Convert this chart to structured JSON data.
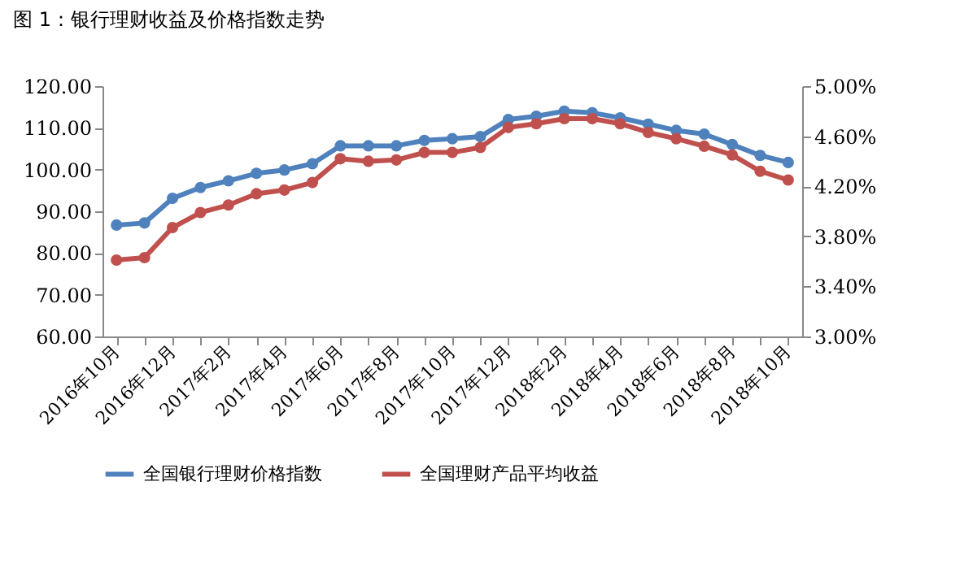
{
  "chart_data": {
    "type": "line",
    "title": "图 1：银行理财收益及价格指数走势",
    "categories": [
      "2016年10月",
      null,
      "2016年12月",
      null,
      "2017年2月",
      null,
      "2017年4月",
      null,
      "2017年6月",
      null,
      "2017年8月",
      null,
      "2017年10月",
      null,
      "2017年12月",
      null,
      "2018年2月",
      null,
      "2018年4月",
      null,
      "2018年6月",
      null,
      "2018年8月",
      null,
      "2018年10月"
    ],
    "series": [
      {
        "name": "全国银行理财价格指数",
        "color": "#4f81bd",
        "values": [
          86.7,
          87.2,
          93.1,
          95.7,
          97.3,
          99.1,
          99.9,
          101.4,
          105.7,
          105.7,
          105.7,
          107.0,
          107.4,
          107.9,
          112.0,
          112.8,
          114.0,
          113.6,
          112.4,
          110.9,
          109.4,
          108.5,
          106.0,
          103.4,
          101.7
        ]
      },
      {
        "name": "全国理财产品平均收益",
        "color": "#c0504d",
        "axis": "y2",
        "values": [
          3.61,
          3.63,
          3.87,
          3.99,
          4.05,
          4.14,
          4.17,
          4.23,
          4.42,
          4.4,
          4.41,
          4.47,
          4.47,
          4.51,
          4.67,
          4.7,
          4.74,
          4.74,
          4.7,
          4.63,
          4.58,
          4.52,
          4.45,
          4.32,
          4.25
        ]
      }
    ],
    "ylim": [
      60,
      120
    ],
    "yticks": [
      {
        "value": 60,
        "label": "60.00"
      },
      {
        "value": 70,
        "label": "70.00"
      },
      {
        "value": 80,
        "label": "80.00"
      },
      {
        "value": 90,
        "label": "90.00"
      },
      {
        "value": 100,
        "label": "100.00"
      },
      {
        "value": 110,
        "label": "110.00"
      },
      {
        "value": 120,
        "label": "120.00"
      }
    ],
    "y2lim": [
      3,
      5
    ],
    "y2ticks": [
      {
        "value": 3,
        "label": "3.00%"
      },
      {
        "value": 3.4,
        "label": "3.40%"
      },
      {
        "value": 3.8,
        "label": "3.80%"
      },
      {
        "value": 4.2,
        "label": "4.20%"
      },
      {
        "value": 4.6,
        "label": "4.60%"
      },
      {
        "value": 5,
        "label": "5.00%"
      }
    ],
    "legend": "bottom",
    "marker": "circle"
  }
}
